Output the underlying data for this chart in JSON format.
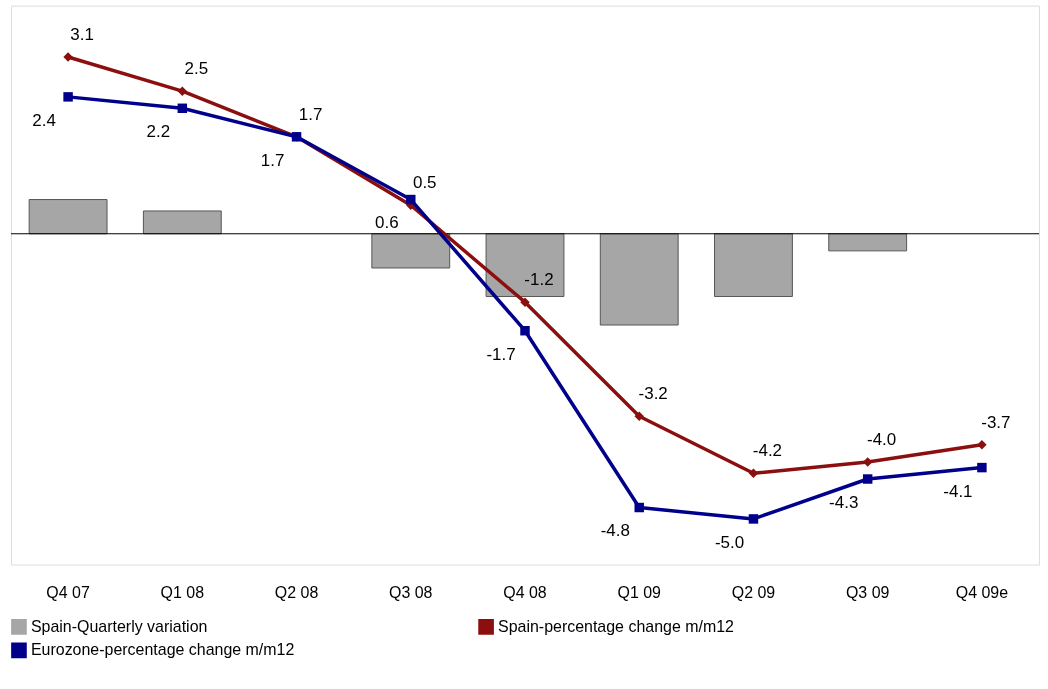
{
  "chart_data": {
    "type": "bar",
    "categories": [
      "Q4 07",
      "Q1 08",
      "Q2 08",
      "Q3 08",
      "Q4 08",
      "Q1 09",
      "Q2 09",
      "Q3 09",
      "Q4 09e"
    ],
    "ylim": [
      -5.8,
      4.0
    ],
    "tick_labels": "x",
    "grid": false,
    "legend": "bottom",
    "series": [
      {
        "name": "Spain-Quarterly variation",
        "color": "#a6a6a6",
        "values": [
          0.6,
          0.4,
          null,
          -0.6,
          -1.1,
          -1.6,
          -1.1,
          -0.3,
          null
        ]
      },
      {
        "name": "Spain-percentage change m/m12",
        "type": "line",
        "color": "#8b0f0f",
        "marker": "diamond",
        "values": [
          3.1,
          2.5,
          1.7,
          0.5,
          -1.2,
          -3.2,
          -4.2,
          -4.0,
          -3.7
        ],
        "value_labels": [
          "3.1",
          "2.5",
          "1.7",
          "0.5",
          "-1.2",
          "-3.2",
          "-4.2",
          "-4.0",
          "-3.7"
        ]
      },
      {
        "name": "Eurozone-percentage change m/m12",
        "type": "line",
        "color": "#00008b",
        "marker": "square",
        "values": [
          2.4,
          2.2,
          1.7,
          0.6,
          -1.7,
          -4.8,
          -5.0,
          -4.3,
          -4.1
        ],
        "value_labels": [
          "2.4",
          "2.2",
          "1.7",
          "0.6",
          "-1.7",
          "-4.8",
          "-5.0",
          "-4.3",
          "-4.1"
        ]
      }
    ]
  }
}
